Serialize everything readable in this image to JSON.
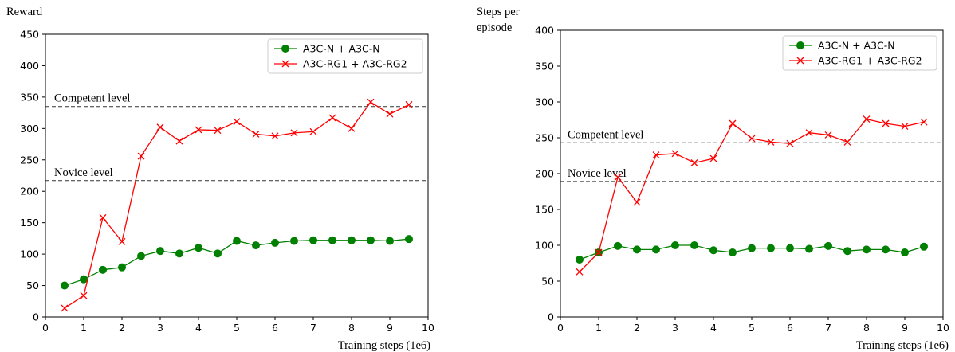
{
  "chart_data": [
    {
      "type": "line",
      "ylabel": "Reward",
      "xlabel": "Training steps (1e6)",
      "xlim": [
        0,
        10
      ],
      "ylim": [
        0,
        450
      ],
      "x_ticks": [
        "0",
        "1",
        "2",
        "3",
        "4",
        "5",
        "6",
        "7",
        "8",
        "9",
        "10"
      ],
      "y_ticks": [
        "0",
        "50",
        "100",
        "150",
        "200",
        "250",
        "300",
        "350",
        "400",
        "450"
      ],
      "grid": false,
      "legend_position": "top-right",
      "x": [
        0.5,
        1,
        1.5,
        2,
        2.5,
        3,
        3.5,
        4,
        4.5,
        5,
        5.5,
        6,
        6.5,
        7,
        7.5,
        8,
        8.5,
        9,
        9.5
      ],
      "series": [
        {
          "name": "A3C-N + A3C-N",
          "color": "#008000",
          "marker": "circle",
          "values": [
            50,
            60,
            75,
            79,
            97,
            105,
            101,
            110,
            101,
            121,
            114,
            118,
            121,
            122,
            122,
            122,
            122,
            121,
            124
          ]
        },
        {
          "name": "A3C-RG1 + A3C-RG2",
          "color": "#ff0000",
          "marker": "x",
          "values": [
            14,
            34,
            158,
            120,
            256,
            302,
            280,
            298,
            297,
            311,
            291,
            288,
            293,
            295,
            317,
            300,
            342,
            323,
            338
          ]
        }
      ],
      "reference_lines": [
        {
          "label": "Competent level",
          "value": 335
        },
        {
          "label": "Novice level",
          "value": 217
        }
      ]
    },
    {
      "type": "line",
      "ylabel": "Steps per episode",
      "xlabel": "Training steps (1e6)",
      "xlim": [
        0,
        10
      ],
      "ylim": [
        0,
        400
      ],
      "x_ticks": [
        "0",
        "1",
        "2",
        "3",
        "4",
        "5",
        "6",
        "7",
        "8",
        "9",
        "10"
      ],
      "y_ticks": [
        "0",
        "50",
        "100",
        "150",
        "200",
        "250",
        "300",
        "350",
        "400"
      ],
      "grid": false,
      "legend_position": "top-right",
      "x": [
        0.5,
        1,
        1.5,
        2,
        2.5,
        3,
        3.5,
        4,
        4.5,
        5,
        5.5,
        6,
        6.5,
        7,
        7.5,
        8,
        8.5,
        9,
        9.5
      ],
      "series": [
        {
          "name": "A3C-N + A3C-N",
          "color": "#008000",
          "marker": "circle",
          "values": [
            80,
            90,
            99,
            94,
            94,
            100,
            100,
            93,
            90,
            96,
            96,
            96,
            95,
            99,
            92,
            94,
            94,
            90,
            98
          ]
        },
        {
          "name": "A3C-RG1 + A3C-RG2",
          "color": "#ff0000",
          "marker": "x",
          "values": [
            63,
            90,
            195,
            160,
            226,
            228,
            215,
            221,
            270,
            249,
            244,
            242,
            257,
            254,
            244,
            276,
            270,
            266,
            272
          ]
        }
      ],
      "reference_lines": [
        {
          "label": "Competent level",
          "value": 243
        },
        {
          "label": "Novice level",
          "value": 189
        }
      ]
    }
  ]
}
